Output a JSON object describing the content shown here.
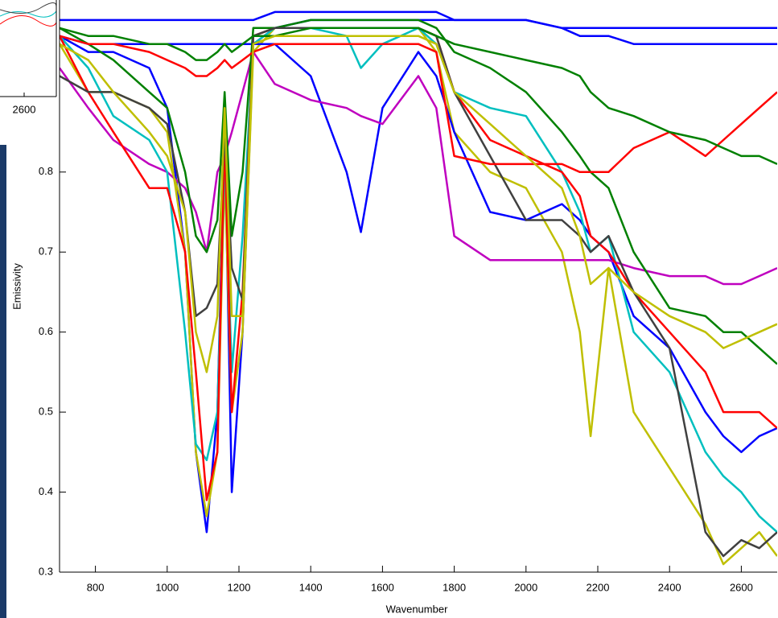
{
  "inset": {
    "tick_label": "2600"
  },
  "chart_data": {
    "type": "line",
    "x_label": "Wavenumber",
    "y_label": "Emissivity",
    "xlim": [
      700,
      2700
    ],
    "ylim": [
      0.3,
      1.015
    ],
    "xticks": [
      800,
      1000,
      1200,
      1400,
      1600,
      1800,
      2000,
      2200,
      2400,
      2600
    ],
    "yticks": [
      0.3,
      0.4,
      0.5,
      0.6,
      0.7,
      0.8
    ],
    "x": [
      700,
      780,
      850,
      950,
      1000,
      1050,
      1080,
      1110,
      1140,
      1160,
      1180,
      1210,
      1240,
      1300,
      1400,
      1500,
      1540,
      1600,
      1700,
      1750,
      1800,
      1900,
      2000,
      2100,
      2150,
      2180,
      2230,
      2300,
      2400,
      2500,
      2550,
      2600,
      2650,
      2700
    ],
    "series": [
      {
        "color": "#0000ff",
        "values": [
          0.97,
          0.95,
          0.95,
          0.93,
          0.88,
          0.7,
          0.45,
          0.35,
          0.5,
          0.85,
          0.4,
          0.6,
          0.96,
          0.98,
          0.99,
          0.99,
          0.99,
          0.99,
          0.99,
          0.99,
          0.99,
          0.99,
          0.99,
          0.98,
          0.97,
          0.97,
          0.97,
          0.96,
          0.96,
          0.96,
          0.96,
          0.96,
          0.96,
          0.96
        ]
      },
      {
        "color": "#bfbf00",
        "values": [
          0.96,
          0.9,
          0.9,
          0.88,
          0.85,
          0.7,
          0.45,
          0.37,
          0.45,
          0.8,
          0.5,
          0.6,
          0.95,
          0.98,
          0.98,
          0.98,
          0.98,
          0.98,
          0.98,
          0.95,
          0.85,
          0.8,
          0.78,
          0.7,
          0.6,
          0.47,
          0.68,
          0.5,
          0.43,
          0.36,
          0.31,
          0.33,
          0.35,
          0.32
        ]
      },
      {
        "color": "#0000ff",
        "values": [
          0.97,
          0.96,
          0.96,
          0.96,
          0.96,
          0.96,
          0.96,
          0.96,
          0.96,
          0.96,
          0.96,
          0.96,
          0.96,
          0.96,
          0.92,
          0.8,
          0.725,
          0.88,
          0.95,
          0.92,
          0.85,
          0.75,
          0.74,
          0.76,
          0.74,
          0.72,
          0.7,
          0.62,
          0.58,
          0.5,
          0.47,
          0.45,
          0.47,
          0.48
        ]
      },
      {
        "color": "#bf00bf",
        "values": [
          0.93,
          0.88,
          0.84,
          0.81,
          0.8,
          0.78,
          0.75,
          0.7,
          0.8,
          0.82,
          0.85,
          0.9,
          0.95,
          0.91,
          0.89,
          0.88,
          0.87,
          0.86,
          0.92,
          0.88,
          0.72,
          0.69,
          0.69,
          0.69,
          0.69,
          0.69,
          0.69,
          0.68,
          0.67,
          0.67,
          0.66,
          0.66,
          0.67,
          0.68
        ]
      },
      {
        "color": "#00bfbf",
        "values": [
          0.97,
          0.93,
          0.87,
          0.84,
          0.8,
          0.6,
          0.46,
          0.44,
          0.5,
          0.82,
          0.55,
          0.72,
          0.96,
          0.98,
          0.98,
          0.97,
          0.93,
          0.96,
          0.98,
          0.96,
          0.9,
          0.88,
          0.87,
          0.8,
          0.75,
          0.7,
          0.72,
          0.6,
          0.55,
          0.45,
          0.42,
          0.4,
          0.37,
          0.35
        ]
      },
      {
        "color": "#ff0000",
        "values": [
          0.97,
          0.9,
          0.85,
          0.78,
          0.78,
          0.7,
          0.55,
          0.39,
          0.45,
          0.85,
          0.5,
          0.65,
          0.97,
          0.98,
          0.98,
          0.98,
          0.98,
          0.98,
          0.98,
          0.97,
          0.9,
          0.84,
          0.82,
          0.8,
          0.77,
          0.72,
          0.7,
          0.65,
          0.6,
          0.55,
          0.5,
          0.5,
          0.5,
          0.48
        ]
      },
      {
        "color": "#008000",
        "values": [
          0.98,
          0.96,
          0.94,
          0.9,
          0.88,
          0.8,
          0.72,
          0.7,
          0.74,
          0.9,
          0.72,
          0.8,
          0.98,
          0.98,
          0.99,
          0.99,
          0.99,
          0.99,
          0.99,
          0.98,
          0.95,
          0.93,
          0.9,
          0.85,
          0.82,
          0.8,
          0.78,
          0.7,
          0.63,
          0.62,
          0.6,
          0.6,
          0.58,
          0.56
        ]
      },
      {
        "color": "#404040",
        "values": [
          0.92,
          0.9,
          0.9,
          0.88,
          0.86,
          0.75,
          0.62,
          0.63,
          0.66,
          0.85,
          0.68,
          0.64,
          0.97,
          0.98,
          0.98,
          0.98,
          0.98,
          0.98,
          0.98,
          0.97,
          0.9,
          0.82,
          0.74,
          0.74,
          0.72,
          0.7,
          0.72,
          0.65,
          0.58,
          0.35,
          0.32,
          0.34,
          0.33,
          0.35
        ]
      },
      {
        "color": "#ff0000",
        "values": [
          0.97,
          0.96,
          0.96,
          0.95,
          0.94,
          0.93,
          0.92,
          0.92,
          0.93,
          0.94,
          0.93,
          0.94,
          0.95,
          0.96,
          0.96,
          0.96,
          0.96,
          0.96,
          0.96,
          0.95,
          0.82,
          0.81,
          0.81,
          0.81,
          0.8,
          0.8,
          0.8,
          0.83,
          0.85,
          0.82,
          0.84,
          0.86,
          0.88,
          0.9
        ]
      },
      {
        "color": "#008000",
        "values": [
          0.98,
          0.97,
          0.97,
          0.96,
          0.96,
          0.95,
          0.94,
          0.94,
          0.95,
          0.96,
          0.95,
          0.96,
          0.97,
          0.97,
          0.98,
          0.98,
          0.98,
          0.98,
          0.98,
          0.97,
          0.96,
          0.95,
          0.94,
          0.93,
          0.92,
          0.9,
          0.88,
          0.87,
          0.85,
          0.84,
          0.83,
          0.82,
          0.82,
          0.81
        ]
      },
      {
        "color": "#bfbf00",
        "values": [
          0.96,
          0.94,
          0.9,
          0.85,
          0.82,
          0.75,
          0.6,
          0.55,
          0.62,
          0.88,
          0.62,
          0.62,
          0.96,
          0.97,
          0.97,
          0.97,
          0.97,
          0.97,
          0.97,
          0.96,
          0.9,
          0.86,
          0.82,
          0.78,
          0.72,
          0.66,
          0.68,
          0.65,
          0.62,
          0.6,
          0.58,
          0.59,
          0.6,
          0.61
        ]
      },
      {
        "color": "#0000ff",
        "values": [
          0.99,
          0.99,
          0.99,
          0.99,
          0.99,
          0.99,
          0.99,
          0.99,
          0.99,
          0.99,
          0.99,
          0.99,
          0.99,
          1.0,
          1.0,
          1.0,
          1.0,
          1.0,
          1.0,
          1.0,
          0.99,
          0.99,
          0.99,
          0.98,
          0.98,
          0.98,
          0.98,
          0.98,
          0.98,
          0.98,
          0.98,
          0.98,
          0.98,
          0.98
        ]
      }
    ]
  }
}
